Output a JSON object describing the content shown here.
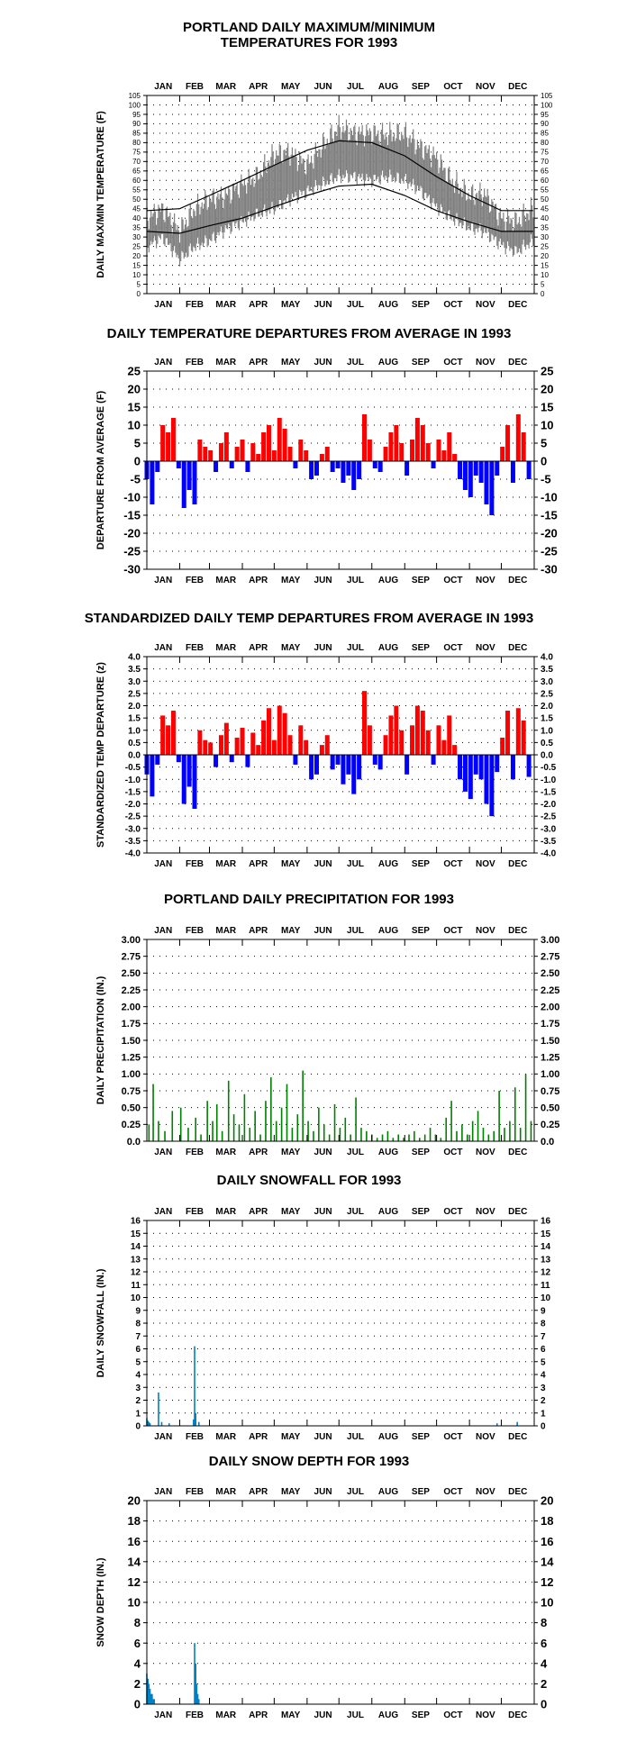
{
  "months": [
    "JAN",
    "FEB",
    "MAR",
    "APR",
    "MAY",
    "JUN",
    "JUL",
    "AUG",
    "SEP",
    "OCT",
    "NOV",
    "DEC"
  ],
  "colors": {
    "maxmin": "#808080",
    "normal": "#000000",
    "above": "#ff0000",
    "below": "#0000ff",
    "precip": "#008000",
    "snow": "#0080c0",
    "grid": "#000000"
  },
  "chart_data": [
    {
      "id": "temps",
      "type": "line",
      "title": "PORTLAND DAILY MAXIMUM/MINIMUM TEMPERATURES FOR 1993",
      "title_lines": [
        "PORTLAND DAILY MAXIMUM/MINIMUM",
        "TEMPERATURES FOR 1993"
      ],
      "ylabel": "DAILY MAX/MIN TEMPERATURE (F)",
      "ylim": [
        0,
        105
      ],
      "yticks": [
        0,
        5,
        10,
        15,
        20,
        25,
        30,
        35,
        40,
        45,
        50,
        55,
        60,
        65,
        70,
        75,
        80,
        85,
        90,
        95,
        100,
        105
      ],
      "x_unit": "day of year (1-365)",
      "series": [
        {
          "role": "daily max",
          "x": [
            1,
            16,
            32,
            46,
            60,
            75,
            91,
            105,
            121,
            135,
            152,
            166,
            182,
            196,
            213,
            227,
            244,
            258,
            274,
            288,
            305,
            319,
            335,
            349,
            365
          ],
          "values": [
            40,
            45,
            33,
            45,
            50,
            52,
            58,
            62,
            74,
            75,
            68,
            78,
            88,
            85,
            85,
            84,
            85,
            78,
            72,
            60,
            52,
            53,
            40,
            38,
            45
          ]
        },
        {
          "role": "daily min",
          "x": [
            1,
            16,
            32,
            46,
            60,
            75,
            91,
            105,
            121,
            135,
            152,
            166,
            182,
            196,
            213,
            227,
            244,
            258,
            274,
            288,
            305,
            319,
            335,
            349,
            365
          ],
          "values": [
            25,
            30,
            18,
            25,
            28,
            34,
            38,
            42,
            45,
            50,
            54,
            58,
            62,
            62,
            60,
            62,
            60,
            55,
            46,
            40,
            35,
            33,
            26,
            22,
            28
          ]
        },
        {
          "role": "normal max",
          "x": [
            1,
            32,
            60,
            91,
            121,
            152,
            182,
            213,
            244,
            274,
            305,
            335,
            365
          ],
          "values": [
            44,
            45,
            52,
            60,
            68,
            76,
            81,
            80,
            73,
            62,
            52,
            44,
            44
          ]
        },
        {
          "role": "normal min",
          "x": [
            1,
            32,
            60,
            91,
            121,
            152,
            182,
            213,
            244,
            274,
            305,
            335,
            365
          ],
          "values": [
            33,
            32,
            36,
            40,
            46,
            52,
            57,
            58,
            52,
            44,
            38,
            33,
            33
          ]
        }
      ]
    },
    {
      "id": "dep",
      "type": "bar",
      "title": "DAILY TEMPERATURE DEPARTURES FROM AVERAGE IN 1993",
      "title_lines": [
        "DAILY TEMPERATURE DEPARTURES FROM AVERAGE IN 1993"
      ],
      "ylabel": "DEPARTURE FROM AVERAGE (F)",
      "ylim": [
        -30,
        25
      ],
      "yticks": [
        -30,
        -25,
        -20,
        -15,
        -10,
        -5,
        0,
        5,
        10,
        15,
        20,
        25
      ],
      "x_unit": "day of year (1-365)",
      "x": [
        1,
        6,
        11,
        16,
        21,
        26,
        31,
        36,
        41,
        46,
        51,
        56,
        61,
        66,
        71,
        76,
        81,
        86,
        91,
        96,
        101,
        106,
        111,
        116,
        121,
        126,
        131,
        136,
        141,
        146,
        151,
        156,
        161,
        166,
        171,
        176,
        181,
        186,
        191,
        196,
        201,
        206,
        211,
        216,
        221,
        226,
        231,
        236,
        241,
        246,
        251,
        256,
        261,
        266,
        271,
        276,
        281,
        286,
        291,
        296,
        301,
        306,
        311,
        316,
        321,
        326,
        331,
        336,
        341,
        346,
        351,
        356,
        361
      ],
      "values": [
        -5,
        -12,
        -3,
        10,
        8,
        12,
        -2,
        -13,
        -8,
        -12,
        6,
        4,
        3,
        -3,
        5,
        8,
        -2,
        4,
        6,
        -3,
        5,
        2,
        8,
        10,
        3,
        12,
        9,
        4,
        -2,
        6,
        3,
        -5,
        -4,
        2,
        4,
        -3,
        -2,
        -6,
        -4,
        -8,
        -5,
        13,
        6,
        -2,
        -3,
        4,
        8,
        10,
        5,
        -4,
        6,
        12,
        10,
        5,
        -2,
        6,
        3,
        8,
        2,
        -5,
        -8,
        -10,
        -4,
        -6,
        -12,
        -15,
        -4,
        4,
        10,
        -6,
        13,
        8,
        -5
      ]
    },
    {
      "id": "std",
      "type": "bar",
      "title": "STANDARDIZED DAILY TEMP DEPARTURES FROM AVERAGE IN 1993",
      "title_lines": [
        "STANDARDIZED DAILY TEMP DEPARTURES FROM AVERAGE IN 1993"
      ],
      "ylabel": "STANDARDIZED TEMP DEPARTURE (z)",
      "ylim": [
        -4,
        4
      ],
      "yticks": [
        -4.0,
        -3.5,
        -3.0,
        -2.5,
        -2.0,
        -1.5,
        -1.0,
        -0.5,
        0.0,
        0.5,
        1.0,
        1.5,
        2.0,
        2.5,
        3.0,
        3.5,
        4.0
      ],
      "x_unit": "day of year (1-365)",
      "x": [
        1,
        6,
        11,
        16,
        21,
        26,
        31,
        36,
        41,
        46,
        51,
        56,
        61,
        66,
        71,
        76,
        81,
        86,
        91,
        96,
        101,
        106,
        111,
        116,
        121,
        126,
        131,
        136,
        141,
        146,
        151,
        156,
        161,
        166,
        171,
        176,
        181,
        186,
        191,
        196,
        201,
        206,
        211,
        216,
        221,
        226,
        231,
        236,
        241,
        246,
        251,
        256,
        261,
        266,
        271,
        276,
        281,
        286,
        291,
        296,
        301,
        306,
        311,
        316,
        321,
        326,
        331,
        336,
        341,
        346,
        351,
        356,
        361
      ],
      "values": [
        -0.8,
        -1.7,
        -0.4,
        1.6,
        1.2,
        1.8,
        -0.3,
        -2.0,
        -1.3,
        -2.2,
        1.0,
        0.6,
        0.5,
        -0.5,
        0.8,
        1.3,
        -0.3,
        0.7,
        1.1,
        -0.5,
        0.9,
        0.4,
        1.4,
        1.9,
        0.6,
        2.0,
        1.7,
        0.8,
        -0.4,
        1.2,
        0.6,
        -1.0,
        -0.8,
        0.4,
        0.8,
        -0.6,
        -0.4,
        -1.2,
        -0.8,
        -1.6,
        -1.0,
        2.6,
        1.2,
        -0.4,
        -0.6,
        0.8,
        1.6,
        2.0,
        1.0,
        -0.8,
        1.2,
        2.0,
        1.8,
        1.0,
        -0.4,
        1.2,
        0.6,
        1.6,
        0.4,
        -1.0,
        -1.5,
        -1.8,
        -0.8,
        -1.0,
        -2.0,
        -2.5,
        -0.7,
        0.7,
        1.8,
        -1.0,
        1.9,
        1.4,
        -0.9
      ]
    },
    {
      "id": "precip",
      "type": "bar",
      "title": "PORTLAND DAILY PRECIPITATION FOR 1993",
      "title_lines": [
        "PORTLAND DAILY PRECIPITATION FOR 1993"
      ],
      "ylabel": "DAILY PRECIPITATION (IN.)",
      "ylim": [
        0,
        3
      ],
      "yticks": [
        0.0,
        0.25,
        0.5,
        0.75,
        1.0,
        1.25,
        1.5,
        1.75,
        2.0,
        2.25,
        2.5,
        2.75,
        3.0
      ],
      "tick_format": "precip",
      "x_unit": "day of year (1-365)",
      "x": [
        3,
        7,
        12,
        18,
        25,
        33,
        40,
        47,
        52,
        58,
        63,
        67,
        72,
        78,
        83,
        88,
        93,
        98,
        103,
        108,
        113,
        118,
        123,
        128,
        133,
        138,
        143,
        148,
        153,
        158,
        163,
        168,
        173,
        178,
        183,
        188,
        193,
        198,
        203,
        208,
        213,
        218,
        223,
        228,
        233,
        238,
        243,
        248,
        253,
        258,
        263,
        268,
        273,
        278,
        283,
        288,
        293,
        298,
        303,
        308,
        313,
        318,
        323,
        328,
        333,
        338,
        343,
        348,
        353,
        358,
        363
      ],
      "values": [
        0.25,
        0.85,
        0.3,
        0.15,
        0.45,
        0.5,
        0.2,
        0.35,
        0.1,
        0.6,
        0.3,
        0.55,
        0.15,
        0.9,
        0.4,
        0.25,
        0.7,
        0.2,
        0.45,
        0.1,
        0.6,
        0.95,
        0.3,
        0.5,
        0.85,
        0.2,
        0.4,
        1.05,
        0.3,
        0.15,
        0.5,
        0.25,
        0.1,
        0.55,
        0.2,
        0.35,
        0.1,
        0.65,
        0.2,
        0.15,
        0.1,
        0.05,
        0.1,
        0.15,
        0.05,
        0.1,
        0.05,
        0.1,
        0.15,
        0.05,
        0.1,
        0.2,
        0.1,
        0.05,
        0.35,
        0.6,
        0.15,
        0.25,
        0.1,
        0.3,
        0.45,
        0.2,
        0.1,
        0.15,
        0.75,
        0.2,
        0.3,
        0.8,
        0.2,
        1.0,
        0.3
      ]
    },
    {
      "id": "snow",
      "type": "bar",
      "title": "DAILY SNOWFALL FOR 1993",
      "title_lines": [
        "DAILY SNOWFALL FOR 1993"
      ],
      "ylabel": "DAILY SNOWFALL (IN.)",
      "ylim": [
        0,
        16
      ],
      "yticks": [
        0,
        1,
        2,
        3,
        4,
        5,
        6,
        7,
        8,
        9,
        10,
        11,
        12,
        13,
        14,
        15,
        16
      ],
      "x_unit": "day of year (1-365)",
      "x": [
        1,
        2,
        3,
        4,
        12,
        15,
        22,
        45,
        46,
        47,
        50,
        331,
        350
      ],
      "values": [
        0.6,
        0.4,
        0.3,
        0.2,
        2.6,
        0.3,
        0.2,
        0.5,
        6.2,
        1.0,
        0.3,
        0.2,
        0.3
      ]
    },
    {
      "id": "depth",
      "type": "bar",
      "title": "DAILY SNOW DEPTH FOR 1993",
      "title_lines": [
        "DAILY SNOW DEPTH FOR 1993"
      ],
      "ylabel": "SNOW DEPTH (IN.)",
      "ylim": [
        0,
        20
      ],
      "yticks": [
        0,
        2,
        4,
        6,
        8,
        10,
        12,
        14,
        16,
        18,
        20
      ],
      "x_unit": "day of year (1-365)",
      "x": [
        1,
        2,
        3,
        4,
        5,
        6,
        7,
        8,
        46,
        47,
        48,
        49,
        50
      ],
      "values": [
        3,
        2.5,
        2,
        1.5,
        1,
        1,
        0.5,
        0.5,
        6,
        4,
        2,
        1,
        0.5
      ]
    }
  ]
}
